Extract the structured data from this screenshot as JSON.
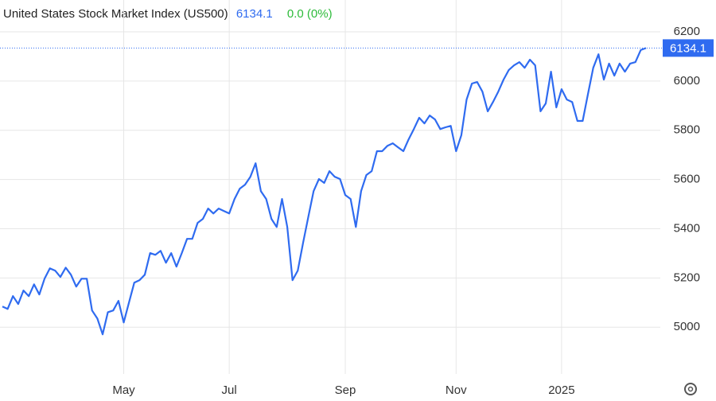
{
  "chart_data": {
    "type": "line",
    "title": "United States Stock Market Index (US500)",
    "change": "0.0 (0%)",
    "color": "#2f6bf0",
    "categories": [
      null,
      null,
      null,
      null,
      null,
      null,
      null,
      null,
      null,
      null,
      null,
      null,
      null,
      null,
      null,
      null,
      null,
      null,
      null,
      null,
      null,
      null,
      null,
      "May",
      null,
      null,
      null,
      null,
      null,
      null,
      null,
      null,
      null,
      null,
      null,
      null,
      null,
      null,
      null,
      null,
      null,
      null,
      null,
      "Jul",
      null,
      null,
      null,
      null,
      null,
      null,
      null,
      null,
      null,
      null,
      null,
      null,
      null,
      null,
      null,
      null,
      null,
      null,
      null,
      null,
      null,
      "Sep",
      null,
      null,
      null,
      null,
      null,
      null,
      null,
      null,
      null,
      null,
      null,
      null,
      null,
      null,
      null,
      null,
      null,
      null,
      null,
      null,
      "Nov",
      null,
      null,
      null,
      null,
      null,
      null,
      null,
      null,
      null,
      null,
      null,
      null,
      null,
      null,
      null,
      null,
      null,
      null,
      null,
      "2025",
      null,
      null,
      null,
      null,
      null,
      null,
      null,
      null,
      null,
      null,
      null,
      null,
      null,
      null,
      null,
      null
    ],
    "values": [
      5084,
      5074,
      5126,
      5094,
      5149,
      5126,
      5174,
      5133,
      5197,
      5239,
      5230,
      5204,
      5242,
      5213,
      5165,
      5197,
      5197,
      5068,
      5035,
      4971,
      5061,
      5068,
      5107,
      5019,
      5100,
      5181,
      5191,
      5213,
      5301,
      5294,
      5310,
      5262,
      5301,
      5246,
      5301,
      5359,
      5359,
      5424,
      5440,
      5482,
      5462,
      5482,
      5472,
      5462,
      5521,
      5563,
      5579,
      5611,
      5666,
      5553,
      5521,
      5440,
      5407,
      5521,
      5407,
      5191,
      5230,
      5343,
      5449,
      5553,
      5602,
      5586,
      5634,
      5611,
      5602,
      5537,
      5521,
      5407,
      5553,
      5618,
      5634,
      5715,
      5715,
      5737,
      5747,
      5731,
      5715,
      5763,
      5805,
      5851,
      5828,
      5860,
      5844,
      5805,
      5812,
      5818,
      5715,
      5780,
      5925,
      5990,
      5996,
      5957,
      5877,
      5915,
      5957,
      6006,
      6045,
      6064,
      6077,
      6054,
      6087,
      6064,
      5877,
      5909,
      6038,
      5893,
      5967,
      5925,
      5915,
      5838,
      5838,
      5948,
      6054,
      6109,
      6006,
      6071,
      6022,
      6071,
      6038,
      6071,
      6077,
      6126,
      6134.1
    ],
    "ylim": [
      4810,
      6200
    ],
    "yticks": [
      5000,
      5200,
      5400,
      5600,
      5800,
      6000,
      6200
    ],
    "grid": true
  }
}
